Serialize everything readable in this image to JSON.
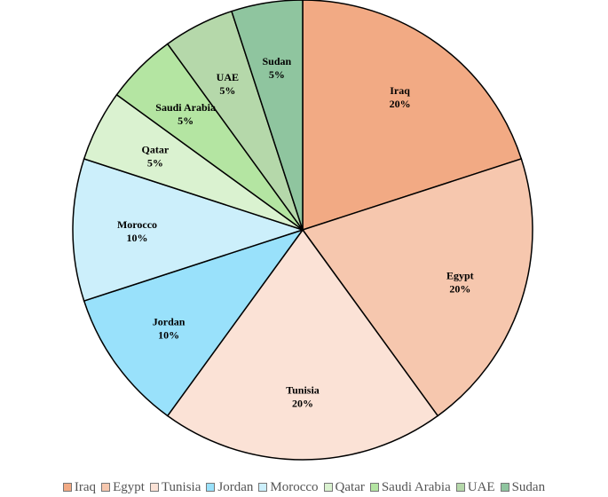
{
  "chart_data": {
    "type": "pie",
    "categories": [
      "Iraq",
      "Egypt",
      "Tunisia",
      "Jordan",
      "Morocco",
      "Qatar",
      "Saudi Arabia",
      "UAE",
      "Sudan"
    ],
    "values": [
      20,
      20,
      20,
      10,
      10,
      5,
      5,
      5,
      5
    ],
    "value_labels": [
      "20%",
      "20%",
      "20%",
      "10%",
      "10%",
      "5%",
      "5%",
      "5%",
      "5%"
    ],
    "colors": [
      "#F2AA84",
      "#F6C7AE",
      "#FBE2D6",
      "#99E1FB",
      "#CCEFFB",
      "#DAF2D0",
      "#B4E5A2",
      "#B5D8AA",
      "#8FC59F"
    ],
    "legend_position": "bottom",
    "start": "top-clockwise"
  }
}
